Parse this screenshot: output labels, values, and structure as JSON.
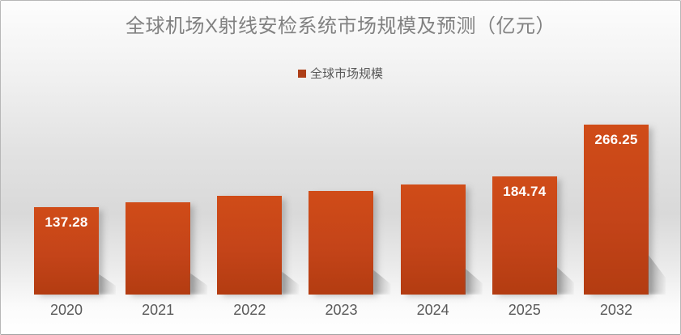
{
  "title": {
    "text": "全球机场X射线安检系统市场规模及预测（亿元）",
    "color": "#818181"
  },
  "legend": {
    "label": "全球市场规模",
    "swatch_color": "#ad3e17"
  },
  "chart_data": {
    "type": "bar",
    "title": "全球机场X射线安检系统市场规模及预测（亿元）",
    "unit": "亿元",
    "categories": [
      "2020",
      "2021",
      "2022",
      "2023",
      "2024",
      "2025",
      "2032"
    ],
    "series": [
      {
        "name": "全球市场规模",
        "values": [
          137.28,
          145.0,
          155.0,
          162.5,
          172.5,
          184.74,
          266.25
        ]
      }
    ],
    "shown_data_labels": [
      "137.28",
      "",
      "",
      "",
      "",
      "184.74",
      "266.25"
    ],
    "data_label_color": "#ffffff",
    "bar_gradient_top": "#d04c18",
    "bar_gradient_bottom": "#b33c11",
    "axis_text_color": "#595959",
    "ylim": [
      0,
      280
    ],
    "grid": false,
    "y_axis_visible": false,
    "legend_position": "top-center"
  }
}
